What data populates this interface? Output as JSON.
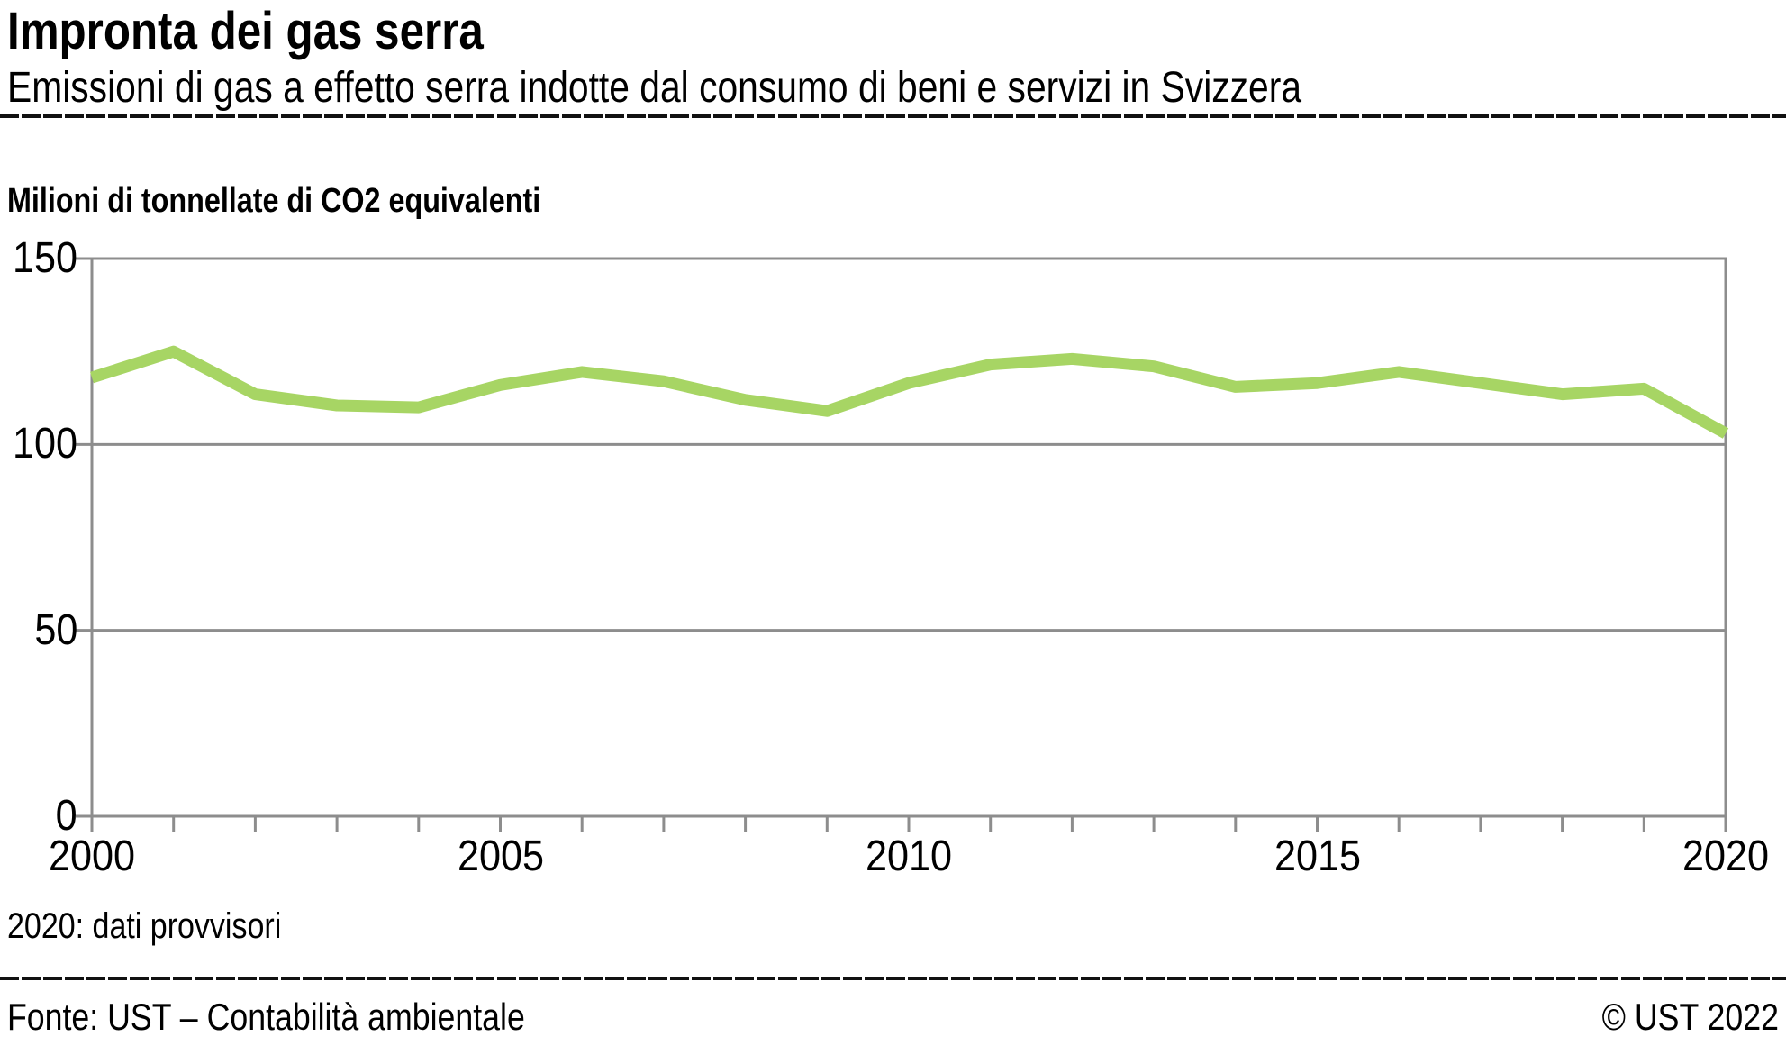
{
  "header": {
    "title": "Impronta dei gas serra",
    "subtitle": "Emissioni di gas a effetto serra indotte dal consumo di beni e servizi in Svizzera"
  },
  "chart": {
    "unit_label": "Milioni di tonnellate di CO2 equivalenti",
    "note": "2020: dati provvisori"
  },
  "footer": {
    "source": "Fonte: UST – Contabilità ambientale",
    "copyright": "© UST 2022"
  },
  "colors": {
    "line": "#a7d564",
    "grid": "#8d8d8d",
    "text": "#000000"
  },
  "chart_data": {
    "type": "line",
    "title": "Impronta dei gas serra",
    "subtitle": "Emissioni di gas a effetto serra indotte dal consumo di beni e servizi in Svizzera",
    "ylabel": "Milioni di tonnellate di CO2 equivalenti",
    "xlabel": "",
    "x": [
      2000,
      2001,
      2002,
      2003,
      2004,
      2005,
      2006,
      2007,
      2008,
      2009,
      2010,
      2011,
      2012,
      2013,
      2014,
      2015,
      2016,
      2017,
      2018,
      2019,
      2020
    ],
    "values": [
      118,
      125,
      113.5,
      110.5,
      110,
      116,
      119.5,
      117,
      112,
      109,
      116.5,
      121.5,
      123,
      121,
      115.5,
      116.5,
      119.5,
      116.5,
      113.5,
      115,
      103
    ],
    "xlim": [
      2000,
      2020
    ],
    "ylim": [
      0,
      150
    ],
    "yticks": [
      0,
      50,
      100,
      150
    ],
    "xticks": [
      2000,
      2005,
      2010,
      2015,
      2020
    ],
    "grid": true,
    "legend": "none",
    "note": "2020: dati provvisori"
  }
}
